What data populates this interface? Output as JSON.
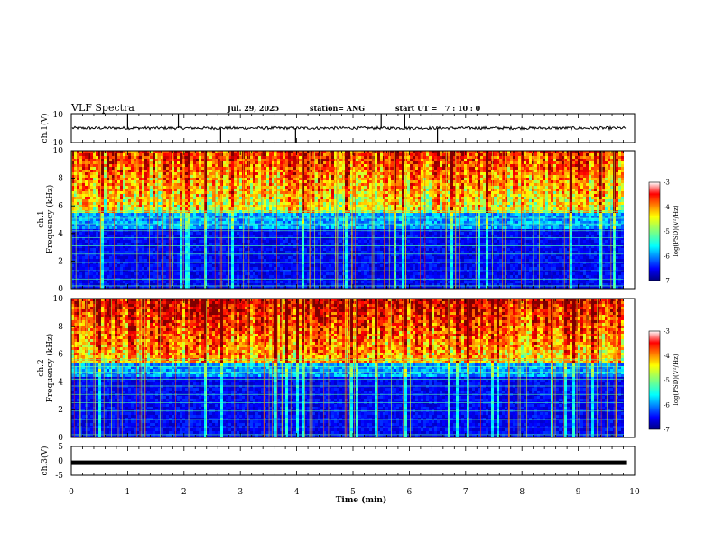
{
  "header": {
    "title": "VLF Spectra",
    "date": "Jul. 29, 2025",
    "station": "station= ANG",
    "start_ut": "start UT =   7 : 10 : 0"
  },
  "chart_data": [
    {
      "type": "line",
      "panel": "ch1-waveform",
      "ylabel": "ch.1(V)",
      "ylim": [
        -10,
        10
      ],
      "y_tick_labels": [
        "10",
        "-10"
      ],
      "baseline_v": 0,
      "noise_amplitude_v": 0.5,
      "spikes": [
        {
          "x_min": 1.0,
          "y": 10
        },
        {
          "x_min": 1.9,
          "y": 10
        },
        {
          "x_min": 2.65,
          "y": -10
        },
        {
          "x_min": 3.98,
          "y": -10
        },
        {
          "x_min": 5.5,
          "y": 10
        },
        {
          "x_min": 5.92,
          "y": 10
        },
        {
          "x_min": 6.5,
          "y": -10
        }
      ]
    },
    {
      "type": "heatmap",
      "panel": "ch1-spectrogram",
      "ylabel": "ch.1\nFrequency (kHz)",
      "ylim": [
        0,
        10
      ],
      "y_tick_labels": [
        "0",
        "2",
        "4",
        "6",
        "8",
        "10"
      ],
      "x_range_min": [
        0,
        9.8
      ],
      "colorbar": {
        "label": "log(PSD)(V²/Hz)",
        "range": [
          -7,
          -3
        ],
        "tick_labels": [
          "-3",
          "-4",
          "-5",
          "-6",
          "-7"
        ]
      }
    },
    {
      "type": "heatmap",
      "panel": "ch2-spectrogram",
      "ylabel": "ch.2\nFrequency (kHz)",
      "ylim": [
        0,
        10
      ],
      "y_tick_labels": [
        "0",
        "2",
        "4",
        "6",
        "8",
        "10"
      ],
      "x_range_min": [
        0,
        9.8
      ],
      "colorbar": {
        "label": "log(PSD)(V²/Hz)",
        "range": [
          -7,
          -3
        ],
        "tick_labels": [
          "-3",
          "-4",
          "-5",
          "-6",
          "-7"
        ]
      }
    },
    {
      "type": "line",
      "panel": "ch3-waveform",
      "ylabel": "ch.3(V)",
      "ylim": [
        -5,
        5
      ],
      "y_tick_labels": [
        "5",
        "0",
        "-5"
      ],
      "level_v": -0.5
    }
  ],
  "x_axis": {
    "label": "Time (min)",
    "range": [
      0,
      10
    ],
    "tick_labels": [
      "0",
      "1",
      "2",
      "3",
      "4",
      "5",
      "6",
      "7",
      "8",
      "9",
      "10"
    ]
  },
  "colors": {
    "jet": [
      "#00007f",
      "#0000ff",
      "#007fff",
      "#00ffff",
      "#7fff7f",
      "#ffff00",
      "#ff7f00",
      "#ff0000",
      "#7f0000"
    ],
    "trace": "#000000"
  }
}
